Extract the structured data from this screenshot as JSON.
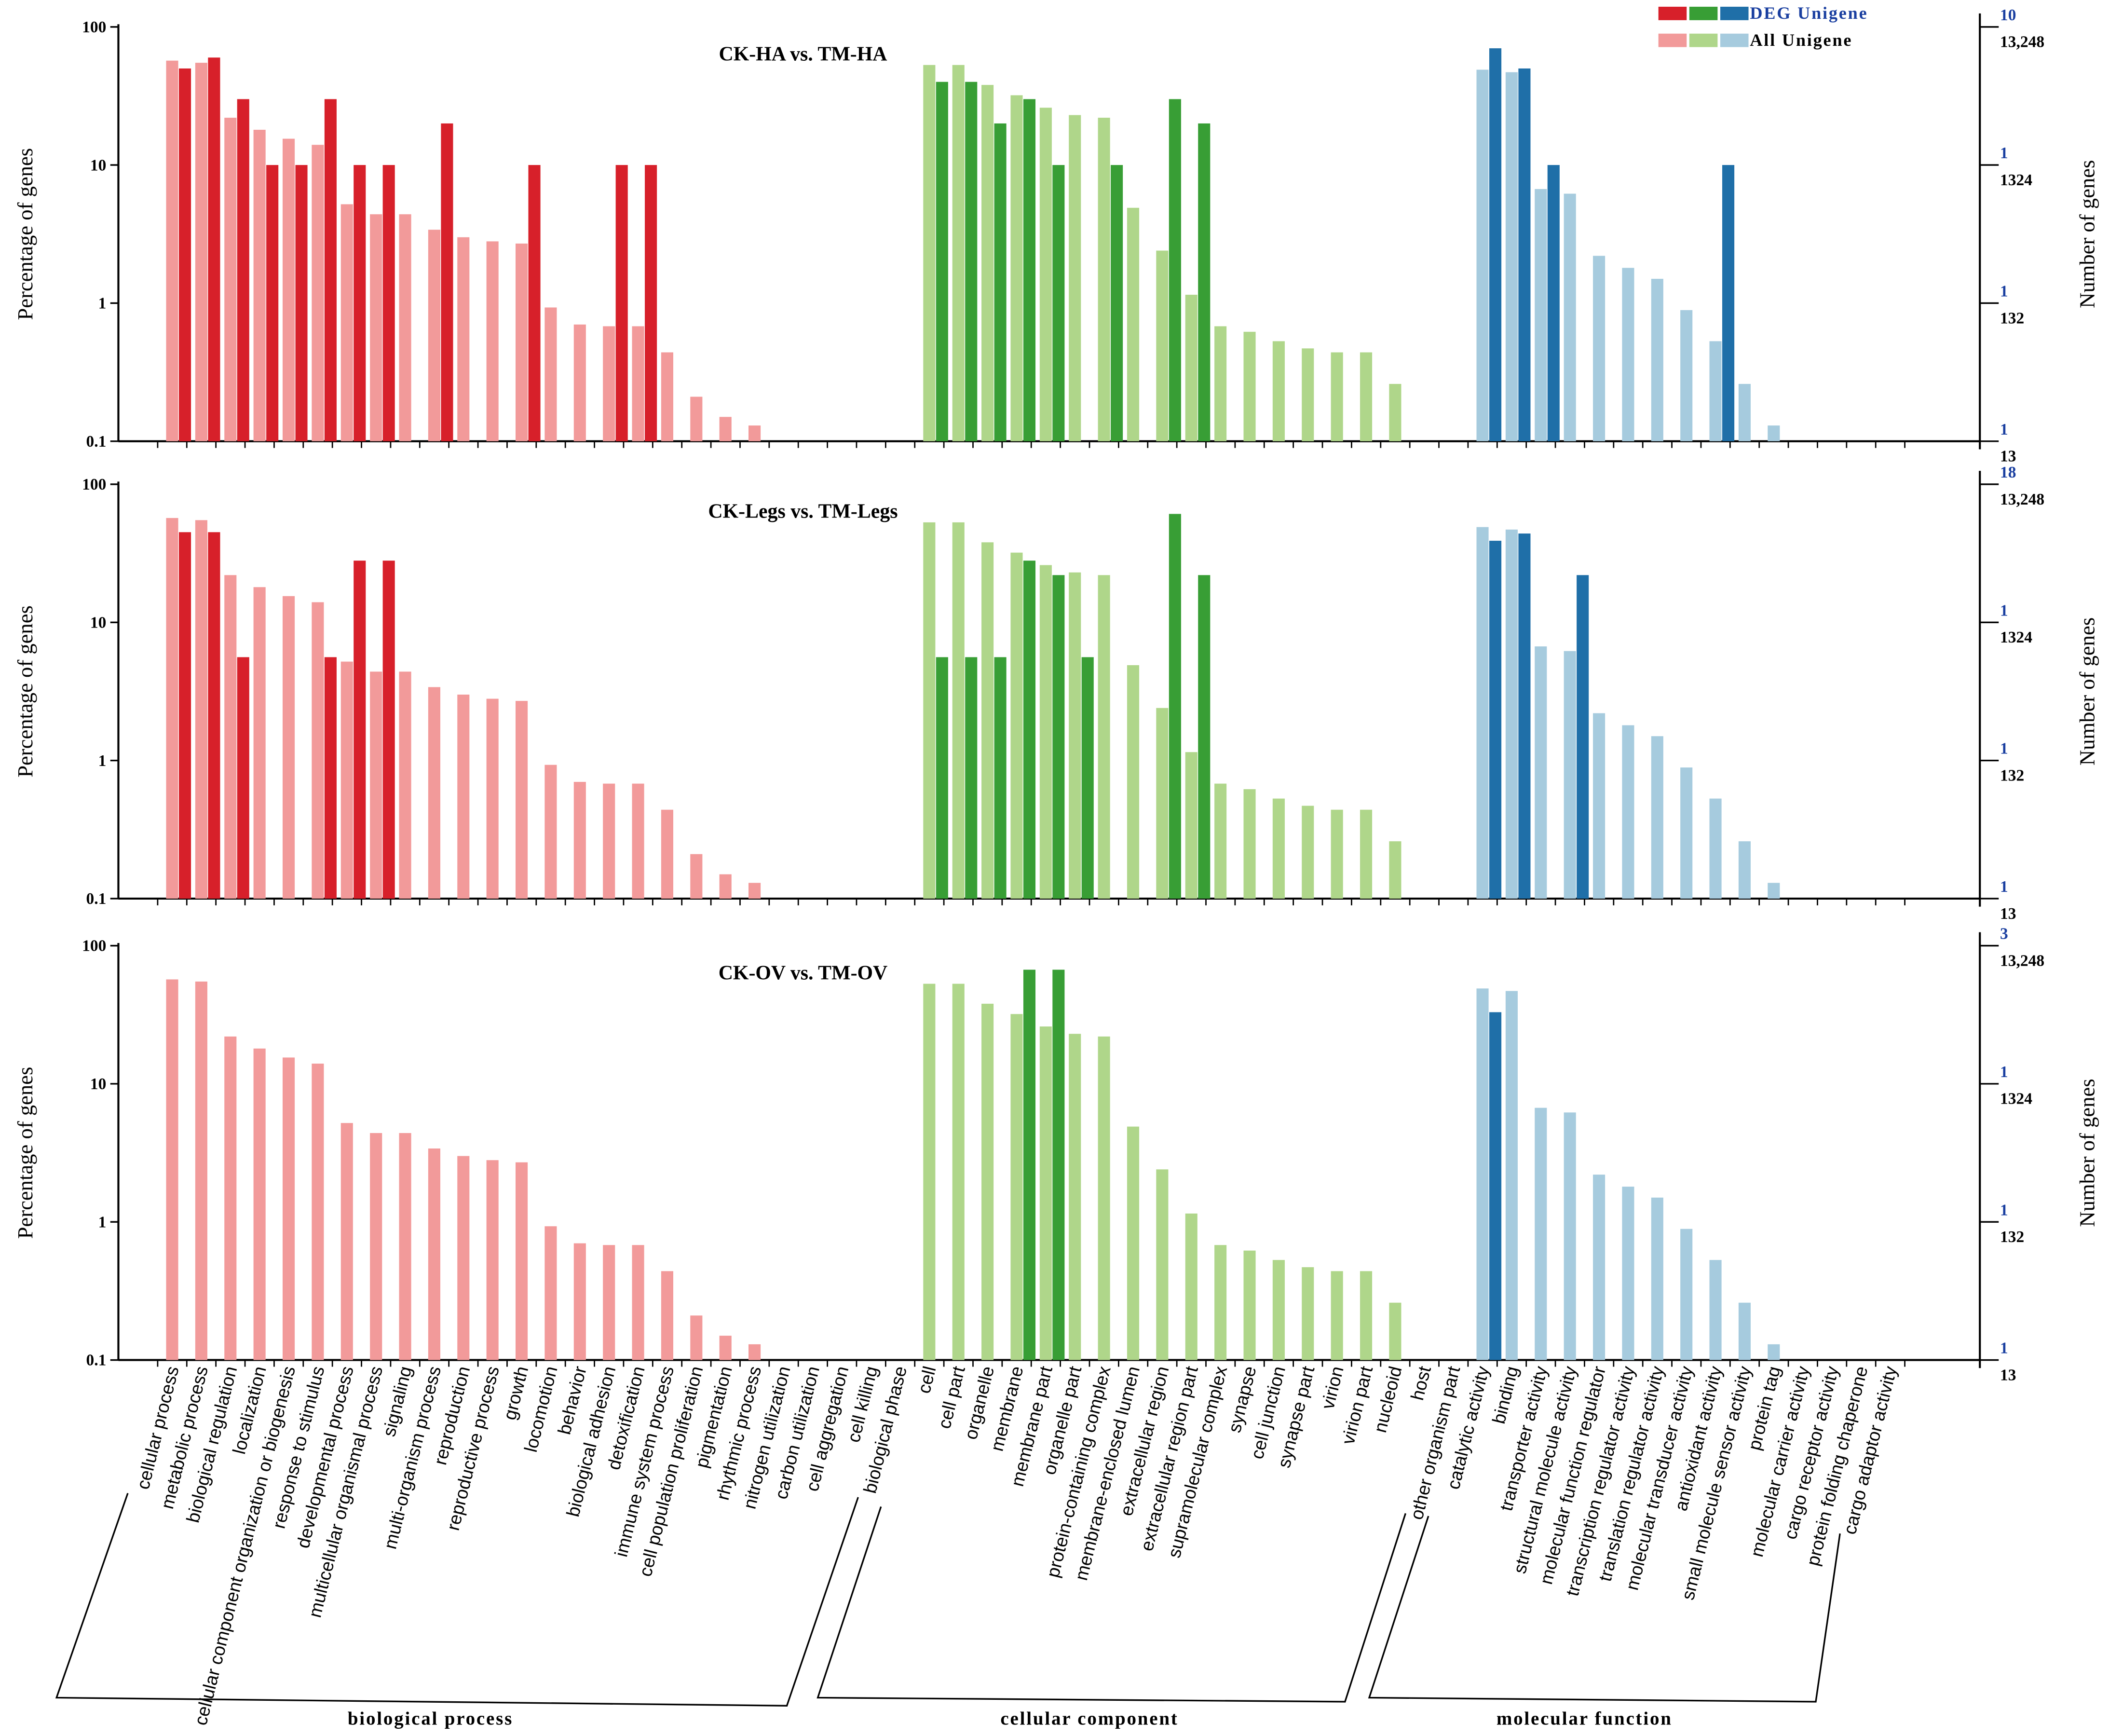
{
  "chart_data": {
    "type": "bar",
    "yscale": "log",
    "ylim": [
      0.1,
      100
    ],
    "ylabel": "Percentage of genes",
    "ylabel_right": "Number of genes",
    "left_ticks": [
      "100",
      "10",
      "1",
      "0.1"
    ],
    "legend": {
      "deg_label": "DEG Unigene",
      "all_label": "All Unigene",
      "placement": "top-right"
    },
    "colors": {
      "deg": [
        "#d7202a",
        "#389e35",
        "#1f6fa8"
      ],
      "all": [
        "#f29a9a",
        "#afd68a",
        "#a6cbde"
      ]
    },
    "groups": [
      {
        "name": "biological process",
        "start": 0,
        "count": 26
      },
      {
        "name": "cellular component",
        "start": 26,
        "count": 19
      },
      {
        "name": "molecular function",
        "start": 45,
        "count": 15
      }
    ],
    "categories": [
      "cellular process",
      "metabolic process",
      "biological regulation",
      "localization",
      "cellular component organization or biogenesis",
      "response to stimulus",
      "developmental process",
      "multicellular organismal process",
      "signaling",
      "multi-organism process",
      "reproduction",
      "reproductive process",
      "growth",
      "locomotion",
      "behavior",
      "biological adhesion",
      "detoxification",
      "immune system process",
      "cell population proliferation",
      "pigmentation",
      "rhythmic process",
      "nitrogen utilization",
      "carbon utilization",
      "cell aggregation",
      "cell killing",
      "biological phase",
      "cell",
      "cell part",
      "organelle",
      "membrane",
      "membrane part",
      "organelle part",
      "protein-containing complex",
      "membrane-enclosed lumen",
      "extracellular region",
      "extracellular region part",
      "supramolecular complex",
      "synapse",
      "cell junction",
      "synapse part",
      "virion",
      "virion part",
      "nucleoid",
      "host",
      "other organism part",
      "catalytic activity",
      "binding",
      "transporter activity",
      "structural molecule activity",
      "molecular function regulator",
      "transcription regulator activity",
      "translation regulator activity",
      "molecular transducer activity",
      "antioxidant activity",
      "small molecule sensor activity",
      "protein tag",
      "molecular carrier activity",
      "cargo receptor activity",
      "protein folding chaperone",
      "cargo adaptor activity"
    ],
    "all_unigene": [
      57,
      55,
      22,
      18,
      15.5,
      14,
      5.2,
      4.4,
      4.4,
      3.4,
      3.0,
      2.8,
      2.7,
      0.93,
      0.7,
      0.68,
      0.68,
      0.44,
      0.21,
      0.15,
      0.13,
      null,
      null,
      null,
      null,
      null,
      53,
      53,
      38,
      32,
      26,
      23,
      22,
      4.9,
      2.4,
      1.15,
      0.68,
      0.62,
      0.53,
      0.47,
      0.44,
      0.44,
      0.26,
      null,
      null,
      49,
      47,
      6.7,
      6.2,
      2.2,
      1.8,
      1.5,
      0.89,
      0.53,
      0.26,
      0.13,
      null,
      null,
      null,
      null
    ],
    "panels": [
      {
        "title": "CK-HA vs. TM-HA",
        "right_ticks_all": [
          "13,248",
          "1324",
          "132",
          "13"
        ],
        "right_ticks_deg": [
          "10",
          "1",
          "1",
          "1"
        ],
        "deg": {
          "0": 50,
          "1": 60,
          "2": 30,
          "3": 10,
          "4": 10,
          "5": 30,
          "6": 10,
          "7": 10,
          "9": 20,
          "12": 10,
          "15": 10,
          "16": 10,
          "26": 40,
          "27": 40,
          "28": 20,
          "29": 30,
          "30": 10,
          "32": 10,
          "34": 30,
          "35": 20,
          "45": 70,
          "46": 50,
          "47": 10,
          "53": 10
        }
      },
      {
        "title": "CK-Legs vs. TM-Legs",
        "right_ticks_all": [
          "13,248",
          "1324",
          "132",
          "13"
        ],
        "right_ticks_deg": [
          "18",
          "1",
          "1",
          "1"
        ],
        "deg": {
          "0": 45,
          "1": 45,
          "2": 5.6,
          "5": 5.6,
          "6": 28,
          "7": 28,
          "26": 5.6,
          "27": 5.6,
          "28": 5.6,
          "29": 28,
          "30": 22,
          "31": 5.6,
          "34": 61,
          "35": 22,
          "45": 39,
          "46": 44,
          "48": 22
        }
      },
      {
        "title": "CK-OV vs. TM-OV",
        "right_ticks_all": [
          "13,248",
          "1324",
          "132",
          "13"
        ],
        "right_ticks_deg": [
          "3",
          "1",
          "1",
          "1"
        ],
        "deg": {
          "29": 67,
          "30": 67,
          "45": 33
        }
      }
    ]
  }
}
